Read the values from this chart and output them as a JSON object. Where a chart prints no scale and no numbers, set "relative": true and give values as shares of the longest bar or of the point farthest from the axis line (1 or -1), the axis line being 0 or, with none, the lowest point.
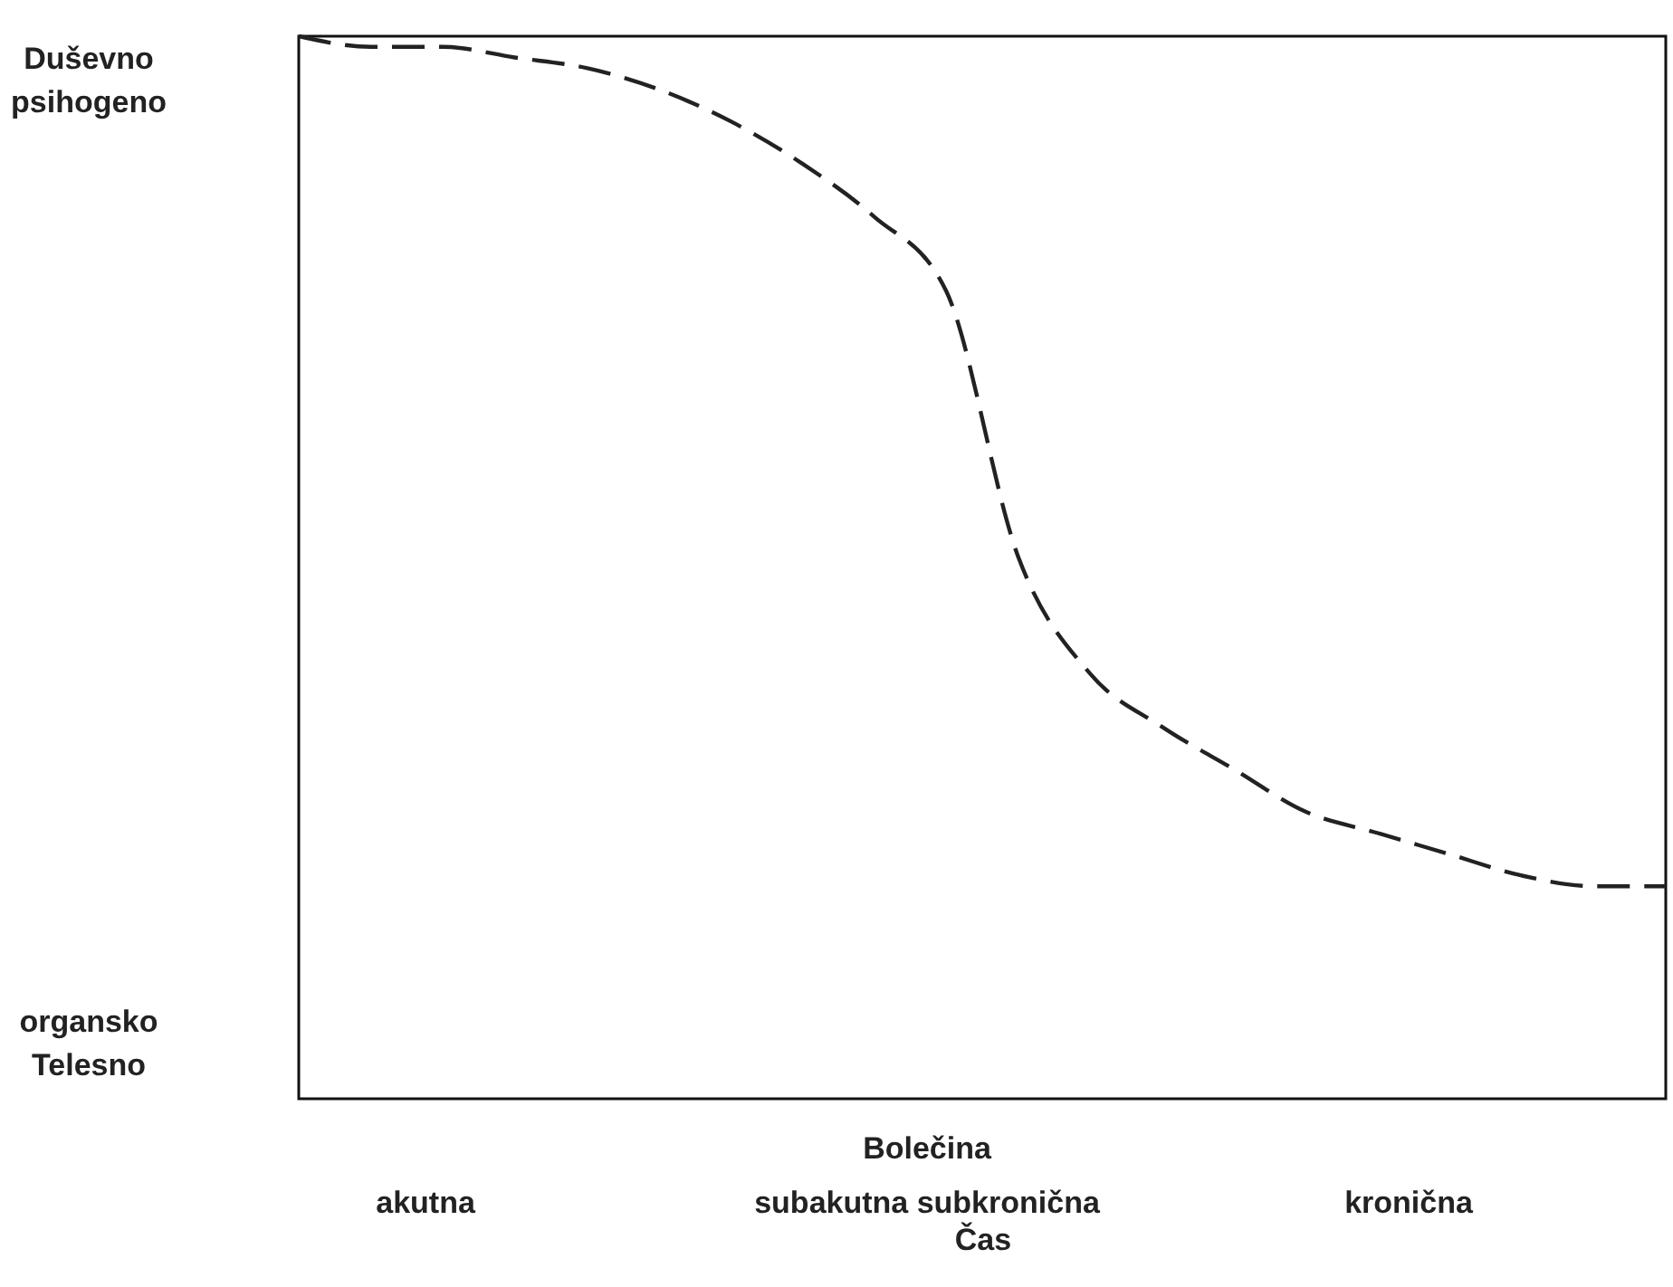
{
  "chart_data": {
    "type": "line",
    "relative": true,
    "xlabel": "Čas",
    "line_style": "dashed",
    "marker": "none",
    "grid": false,
    "categories": [
      null,
      null,
      null,
      null,
      null,
      null,
      null,
      null,
      null,
      null,
      null,
      null,
      null,
      null,
      null,
      null,
      null,
      null,
      null,
      null
    ],
    "series": [
      {
        "color": "#222222",
        "values": [
          1,
          0.99,
          0.99,
          0.98,
          0.97,
          0.95,
          0.92,
          0.88,
          0.83,
          0.76,
          0.51,
          0.4,
          0.35,
          0.31,
          0.27,
          0.25,
          0.23,
          0.21,
          0.2,
          0.2
        ]
      }
    ],
    "annotations": [
      "Duševno psihogeno",
      "organsko Telesno",
      "Bolečina",
      "akutna",
      "subakutna  subkronična",
      "kronična"
    ]
  }
}
